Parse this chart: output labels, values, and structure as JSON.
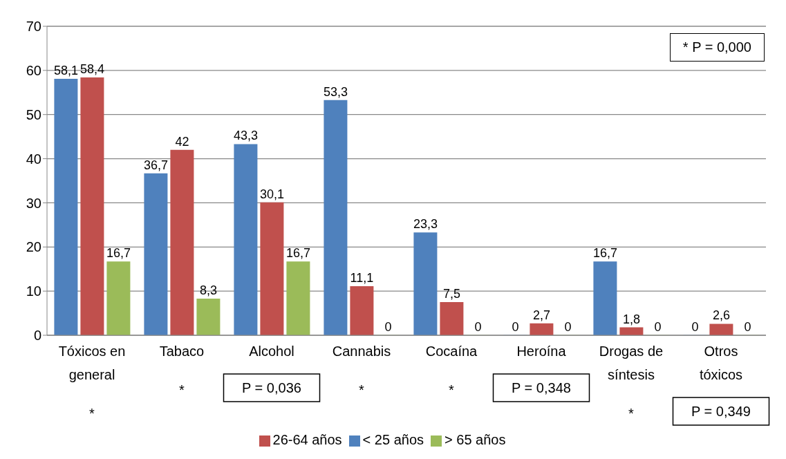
{
  "chart_data": {
    "type": "bar",
    "categories": [
      "Tóxicos en general",
      "Tabaco",
      "Alcohol",
      "Cannabis",
      "Cocaína",
      "Heroína",
      "Drogas de síntesis",
      "Otros tóxicos"
    ],
    "series": [
      {
        "name": "< 25 años",
        "color": "#4f81bd",
        "values": [
          58.1,
          36.7,
          43.3,
          53.3,
          23.3,
          0,
          16.7,
          0
        ],
        "value_labels": [
          "58,1",
          "36,7",
          "43,3",
          "53,3",
          "23,3",
          "0",
          "16,7",
          "0"
        ]
      },
      {
        "name": "26-64 años",
        "color": "#c0504d",
        "values": [
          58.4,
          42,
          30.1,
          11.1,
          7.5,
          2.7,
          1.8,
          2.6
        ],
        "value_labels": [
          "58,4",
          "42",
          "30,1",
          "11,1",
          "7,5",
          "2,7",
          "1,8",
          "2,6"
        ]
      },
      {
        "name": "> 65 años",
        "color": "#9bbb59",
        "values": [
          16.7,
          8.3,
          16.7,
          0,
          0,
          0,
          0,
          0
        ],
        "value_labels": [
          "16,7",
          "8,3",
          "16,7",
          "0",
          "0",
          "0",
          "0",
          "0"
        ]
      }
    ],
    "ylim": [
      0,
      70
    ],
    "yticks": [
      0,
      10,
      20,
      30,
      40,
      50,
      60,
      70
    ],
    "grid": "y",
    "legend": "bottom",
    "annotations": [
      "* P = 0,000",
      "*",
      "*",
      "P = 0,036",
      "*",
      "*",
      "P = 0,348",
      "*",
      "P = 0,349"
    ]
  }
}
